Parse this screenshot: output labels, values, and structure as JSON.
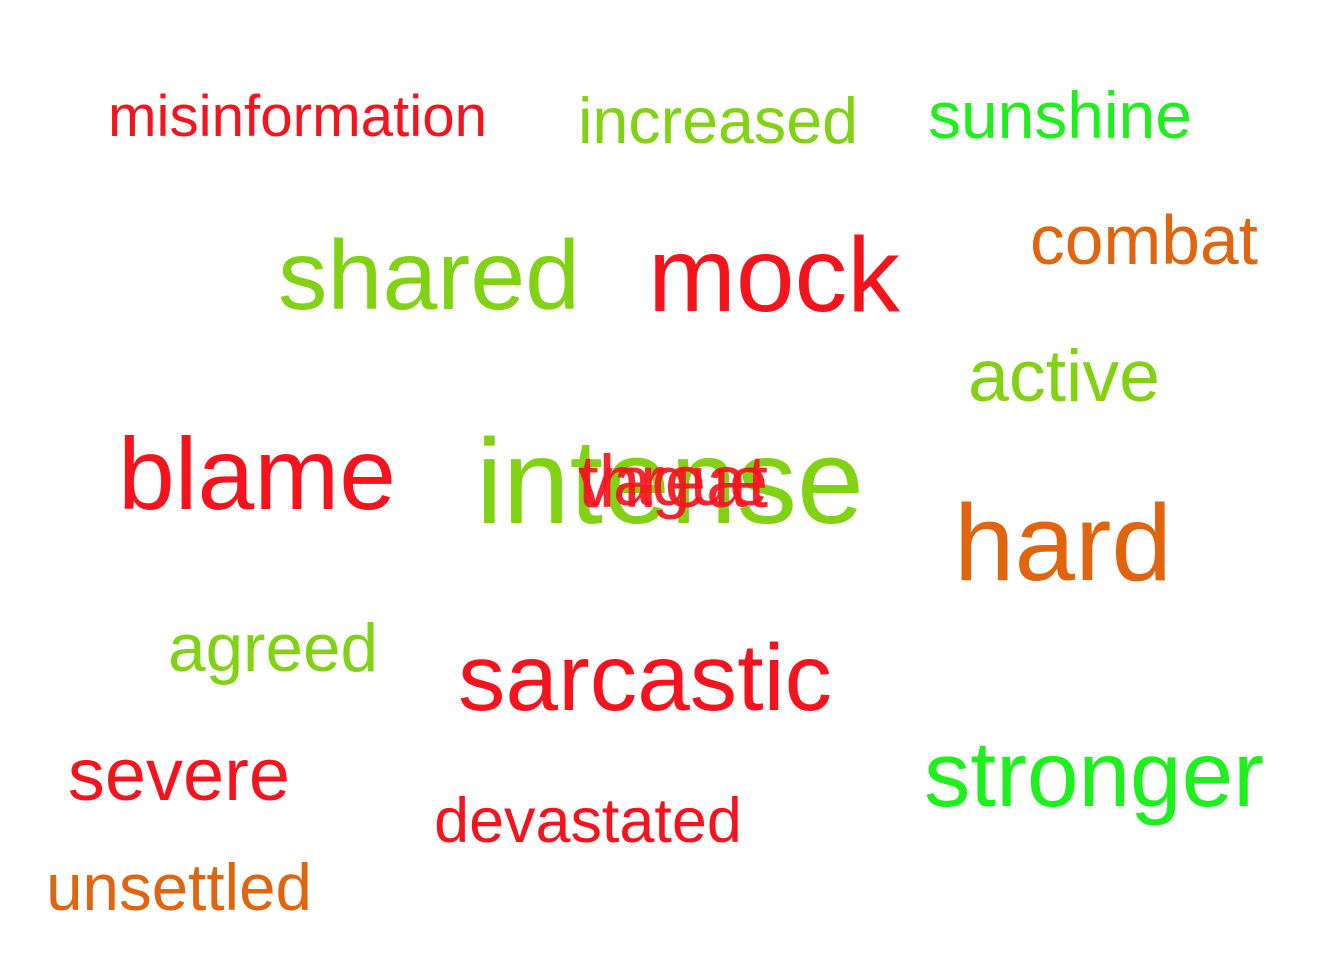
{
  "palette": {
    "red": "#f5141e",
    "yellow_green": "#82d214",
    "green": "#1ef01e",
    "orange": "#e1640f"
  },
  "words": [
    {
      "text": "misinformation",
      "color": "red"
    },
    {
      "text": "increased",
      "color": "yellow_green"
    },
    {
      "text": "sunshine",
      "color": "green"
    },
    {
      "text": "shared",
      "color": "yellow_green"
    },
    {
      "text": "mock",
      "color": "red"
    },
    {
      "text": "combat",
      "color": "orange"
    },
    {
      "text": "active",
      "color": "yellow_green"
    },
    {
      "text": "blame",
      "color": "red"
    },
    {
      "text": "intense",
      "color": "yellow_green"
    },
    {
      "text": "vague",
      "color": "red"
    },
    {
      "text": "threat",
      "color": "red"
    },
    {
      "text": "hard",
      "color": "orange"
    },
    {
      "text": "agreed",
      "color": "yellow_green"
    },
    {
      "text": "sarcastic",
      "color": "red"
    },
    {
      "text": "severe",
      "color": "red"
    },
    {
      "text": "stronger",
      "color": "green"
    },
    {
      "text": "devastated",
      "color": "red"
    },
    {
      "text": "unsettled",
      "color": "orange"
    }
  ]
}
